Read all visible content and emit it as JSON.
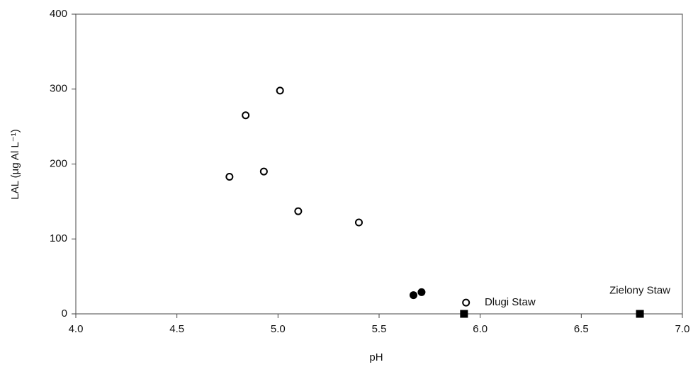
{
  "chart_data": {
    "type": "scatter",
    "xlabel": "pH",
    "ylabel": "LAL (µg Al L⁻¹)",
    "xlim": [
      4.0,
      7.0
    ],
    "ylim": [
      0,
      400
    ],
    "xticks": [
      {
        "value": 4,
        "label": "4.0"
      },
      {
        "value": 4.5,
        "label": "4.5"
      },
      {
        "value": 5,
        "label": "5.0"
      },
      {
        "value": 5.5,
        "label": "5.5"
      },
      {
        "value": 6,
        "label": "6.0"
      },
      {
        "value": 6.5,
        "label": "6.5"
      },
      {
        "value": 7,
        "label": "7.0"
      }
    ],
    "yticks": [
      0,
      100,
      200,
      300,
      400
    ],
    "grid": false,
    "series": [
      {
        "marker": "open-circle",
        "color": "#000000",
        "x": [
          4.76,
          4.84,
          4.93,
          5.01,
          5.1,
          5.4,
          5.93
        ],
        "values": [
          183,
          265,
          190,
          298,
          137,
          122,
          15
        ]
      },
      {
        "marker": "filled-circle",
        "color": "#000000",
        "x": [
          5.67,
          5.71
        ],
        "values": [
          25,
          29
        ]
      },
      {
        "marker": "filled-square",
        "color": "#000000",
        "x": [
          5.92,
          6.79
        ],
        "values": [
          0,
          0
        ]
      }
    ],
    "annotations": [
      {
        "text": "Dlugi Staw",
        "x": 5.98,
        "y": 15,
        "anchor": "start"
      },
      {
        "text": "Zielony Staw",
        "x": 6.79,
        "y": 25,
        "anchor": "middle"
      }
    ]
  }
}
